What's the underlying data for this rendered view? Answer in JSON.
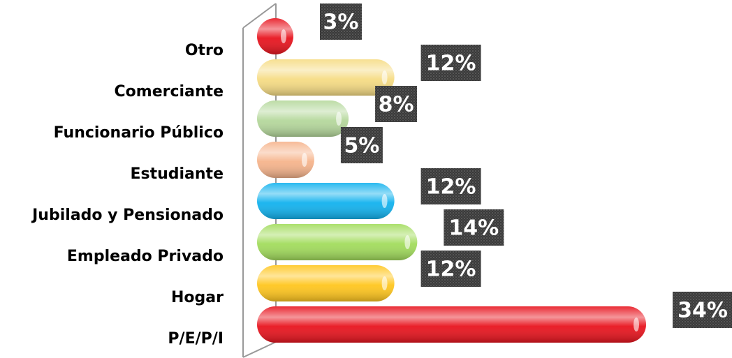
{
  "chart_data": {
    "type": "bar",
    "orientation": "horizontal",
    "categories": [
      "Otro",
      "Comerciante",
      "Funcionario Público",
      "Estudiante",
      "Jubilado y Pensionado",
      "Empleado Privado",
      "Hogar",
      "P/E/P/I"
    ],
    "values": [
      3,
      12,
      8,
      5,
      12,
      14,
      12,
      34
    ],
    "value_labels": [
      "3%",
      "12%",
      "8%",
      "5%",
      "12%",
      "14%",
      "12%",
      "34%"
    ],
    "colors": [
      "#e8141e",
      "#f6dc84",
      "#b5d89c",
      "#f6b48c",
      "#12b2ee",
      "#a2dc5c",
      "#ffc61e",
      "#e8141e"
    ]
  }
}
